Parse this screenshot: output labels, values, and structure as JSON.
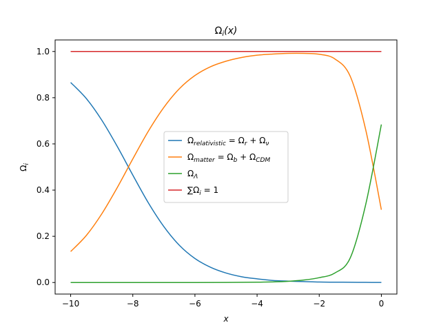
{
  "chart_data": {
    "type": "line",
    "title": "Ω_i(x)",
    "xlabel": "x",
    "ylabel": "Ω_i",
    "xlim": [
      -10.5,
      0.5
    ],
    "ylim": [
      -0.05,
      1.05
    ],
    "xticks": [
      -10,
      -8,
      -6,
      -4,
      -2,
      0
    ],
    "yticks": [
      0.0,
      0.2,
      0.4,
      0.6,
      0.8,
      1.0
    ],
    "xtick_labels": [
      "−10",
      "−8",
      "−6",
      "−4",
      "−2",
      "0"
    ],
    "ytick_labels": [
      "0.0",
      "0.2",
      "0.4",
      "0.6",
      "0.8",
      "1.0"
    ],
    "grid": false,
    "legend_position": "center",
    "series": [
      {
        "name": "Ω_relativistic = Ω_r + Ω_ν",
        "color": "#1f77b4",
        "x": [
          -10,
          -9.5,
          -9,
          -8.5,
          -8,
          -7.5,
          -7,
          -6.5,
          -6,
          -5.5,
          -5,
          -4.5,
          -4,
          -3.5,
          -3,
          -2.5,
          -2,
          -1.5,
          -1,
          -0.5,
          0
        ],
        "y": [
          0.866,
          0.797,
          0.703,
          0.589,
          0.465,
          0.345,
          0.242,
          0.161,
          0.104,
          0.066,
          0.041,
          0.025,
          0.016,
          0.009,
          0.006,
          0.004,
          0.002,
          0.0015,
          0.001,
          0.0006,
          0.0003
        ]
      },
      {
        "name": "Ω_matter = Ω_b + Ω_CDM",
        "color": "#ff7f0e",
        "x": [
          -10,
          -9.5,
          -9,
          -8.5,
          -8,
          -7.5,
          -7,
          -6.5,
          -6,
          -5.5,
          -5,
          -4.5,
          -4,
          -3.5,
          -3,
          -2.5,
          -2,
          -1.5,
          -1,
          -0.5,
          0
        ],
        "y": [
          0.134,
          0.203,
          0.297,
          0.411,
          0.535,
          0.655,
          0.758,
          0.839,
          0.896,
          0.934,
          0.958,
          0.974,
          0.984,
          0.989,
          0.992,
          0.992,
          0.988,
          0.968,
          0.892,
          0.659,
          0.315
        ]
      },
      {
        "name": "Ω_Λ",
        "color": "#2ca02c",
        "x": [
          -10,
          -9,
          -8,
          -7,
          -6,
          -5,
          -4,
          -3.5,
          -3,
          -2.5,
          -2,
          -1.5,
          -1,
          -0.5,
          0
        ],
        "y": [
          0,
          0,
          0,
          0,
          0,
          0.0004,
          0.0013,
          0.0026,
          0.0053,
          0.0107,
          0.021,
          0.041,
          0.107,
          0.34,
          0.684
        ]
      },
      {
        "name": "∑Ω_i = 1",
        "color": "#d62728",
        "x": [
          -10,
          0
        ],
        "y": [
          1,
          1
        ]
      }
    ]
  },
  "legend": {
    "entries": [
      {
        "base": "Ω",
        "sub": "relativistic",
        "rest": [
          " = Ω",
          "r",
          " + Ω",
          "ν"
        ]
      },
      {
        "base": "Ω",
        "sub": "matter",
        "rest": [
          " = Ω",
          "b",
          " + Ω",
          "CDM"
        ]
      },
      {
        "base": "Ω",
        "sub": "Λ",
        "rest": []
      },
      {
        "base": "∑Ω",
        "sub": "i",
        "rest": [
          " = 1"
        ]
      }
    ]
  },
  "labels": {
    "title_base": "Ω",
    "title_sub": "i",
    "title_rest": "(x)",
    "ylabel_base": "Ω",
    "ylabel_sub": "i",
    "xlabel": "x"
  }
}
